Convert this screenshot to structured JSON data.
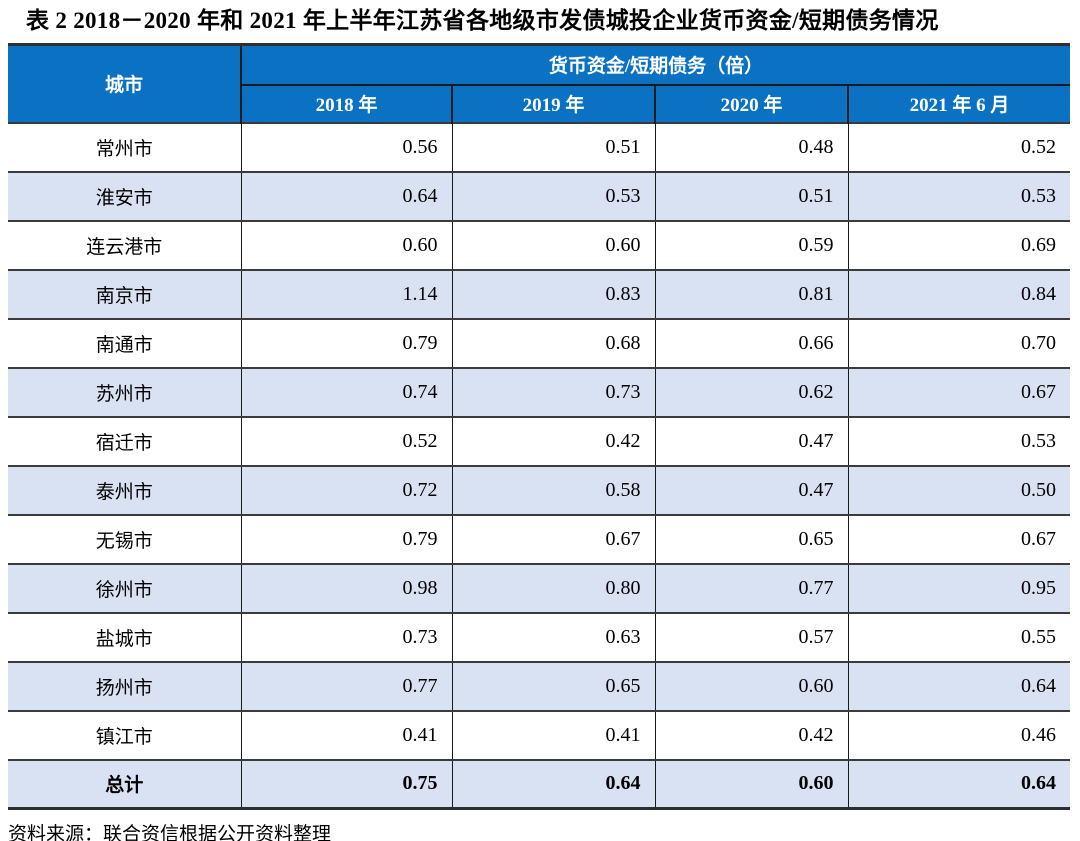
{
  "title": "表 2  2018－2020 年和 2021 年上半年江苏省各地级市发债城投企业货币资金/短期债务情况",
  "table": {
    "city_header": "城市",
    "group_header": "货币资金/短期债务（倍）",
    "year_headers": [
      "2018 年",
      "2019 年",
      "2020 年",
      "2021 年 6 月"
    ],
    "rows": [
      {
        "city": "常州市",
        "values": [
          "0.56",
          "0.51",
          "0.48",
          "0.52"
        ]
      },
      {
        "city": "淮安市",
        "values": [
          "0.64",
          "0.53",
          "0.51",
          "0.53"
        ]
      },
      {
        "city": "连云港市",
        "values": [
          "0.60",
          "0.60",
          "0.59",
          "0.69"
        ]
      },
      {
        "city": "南京市",
        "values": [
          "1.14",
          "0.83",
          "0.81",
          "0.84"
        ]
      },
      {
        "city": "南通市",
        "values": [
          "0.79",
          "0.68",
          "0.66",
          "0.70"
        ]
      },
      {
        "city": "苏州市",
        "values": [
          "0.74",
          "0.73",
          "0.62",
          "0.67"
        ]
      },
      {
        "city": "宿迁市",
        "values": [
          "0.52",
          "0.42",
          "0.47",
          "0.53"
        ]
      },
      {
        "city": "泰州市",
        "values": [
          "0.72",
          "0.58",
          "0.47",
          "0.50"
        ]
      },
      {
        "city": "无锡市",
        "values": [
          "0.79",
          "0.67",
          "0.65",
          "0.67"
        ]
      },
      {
        "city": "徐州市",
        "values": [
          "0.98",
          "0.80",
          "0.77",
          "0.95"
        ]
      },
      {
        "city": "盐城市",
        "values": [
          "0.73",
          "0.63",
          "0.57",
          "0.55"
        ]
      },
      {
        "city": "扬州市",
        "values": [
          "0.77",
          "0.65",
          "0.60",
          "0.64"
        ]
      },
      {
        "city": "镇江市",
        "values": [
          "0.41",
          "0.41",
          "0.42",
          "0.46"
        ]
      },
      {
        "city": "总计",
        "values": [
          "0.75",
          "0.64",
          "0.60",
          "0.64"
        ],
        "is_total": true
      }
    ]
  },
  "source_note": "资料来源：联合资信根据公开资料整理",
  "colors": {
    "header_bg": "#0b72c3",
    "header_text": "#ffffff",
    "alt_row_bg": "#d9e2f3",
    "border_dark": "#2e2e2e",
    "border_mid": "#3b3b3b"
  }
}
